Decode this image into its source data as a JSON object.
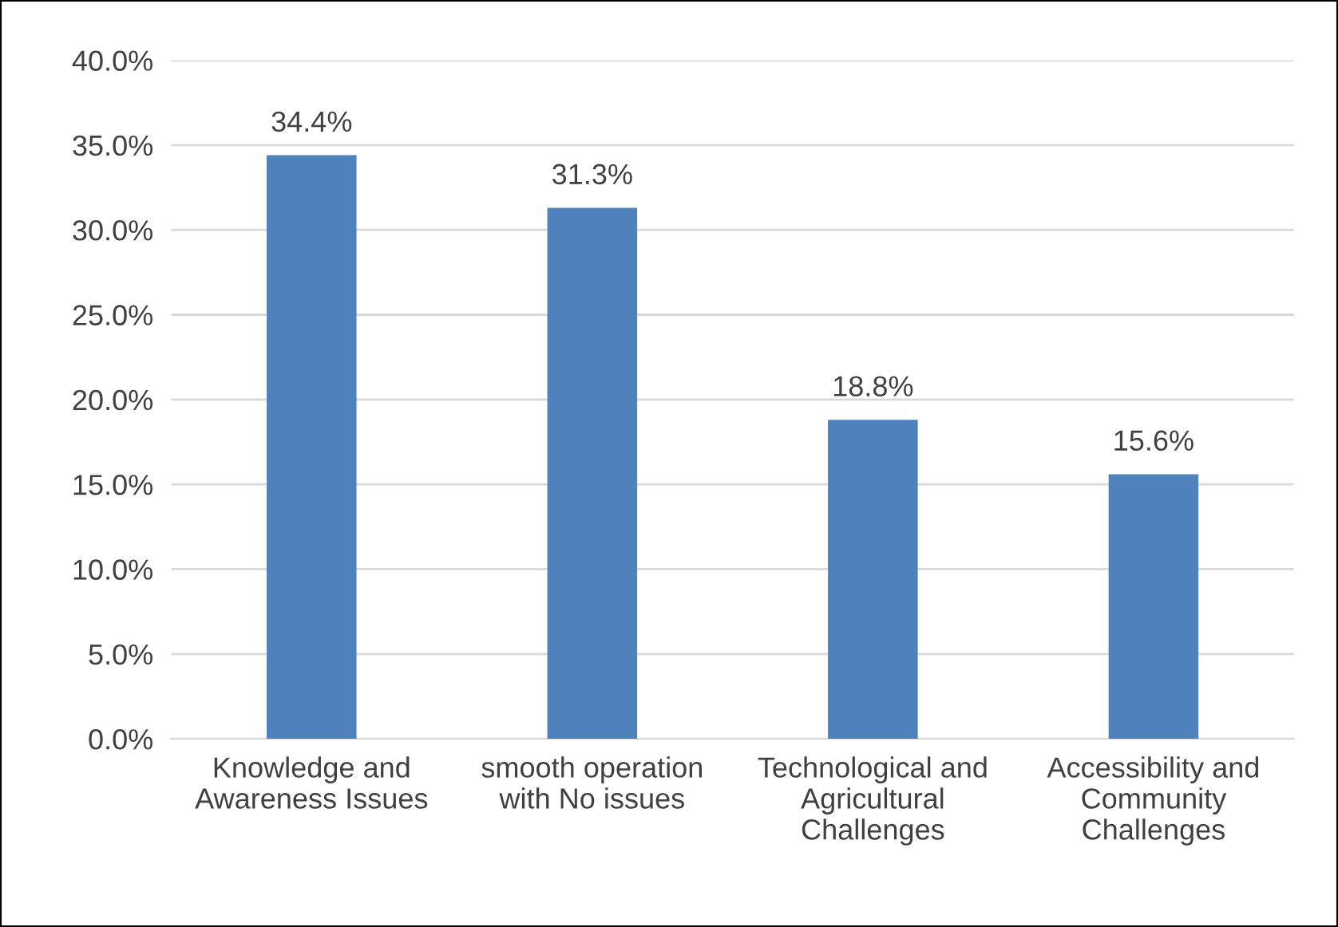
{
  "chart_data": {
    "type": "bar",
    "categories": [
      "Knowledge and\nAwareness Issues",
      "smooth operation\nwith No issues",
      "Technological and\nAgricultural\nChallenges",
      "Accessibility and\nCommunity\nChallenges"
    ],
    "values": [
      34.4,
      31.3,
      18.8,
      15.6
    ],
    "value_labels": [
      "34.4%",
      "31.3%",
      "18.8%",
      "15.6%"
    ],
    "color": "#4f81bd",
    "ylim": [
      0,
      40
    ],
    "yticks": [
      {
        "value": 0,
        "label": "0.0%"
      },
      {
        "value": 5,
        "label": "5.0%"
      },
      {
        "value": 10,
        "label": "10.0%"
      },
      {
        "value": 15,
        "label": "15.0%"
      },
      {
        "value": 20,
        "label": "20.0%"
      },
      {
        "value": 25,
        "label": "25.0%"
      },
      {
        "value": 30,
        "label": "30.0%"
      },
      {
        "value": 35,
        "label": "35.0%"
      },
      {
        "value": 40,
        "label": "40.0%"
      }
    ],
    "grid": "y"
  }
}
